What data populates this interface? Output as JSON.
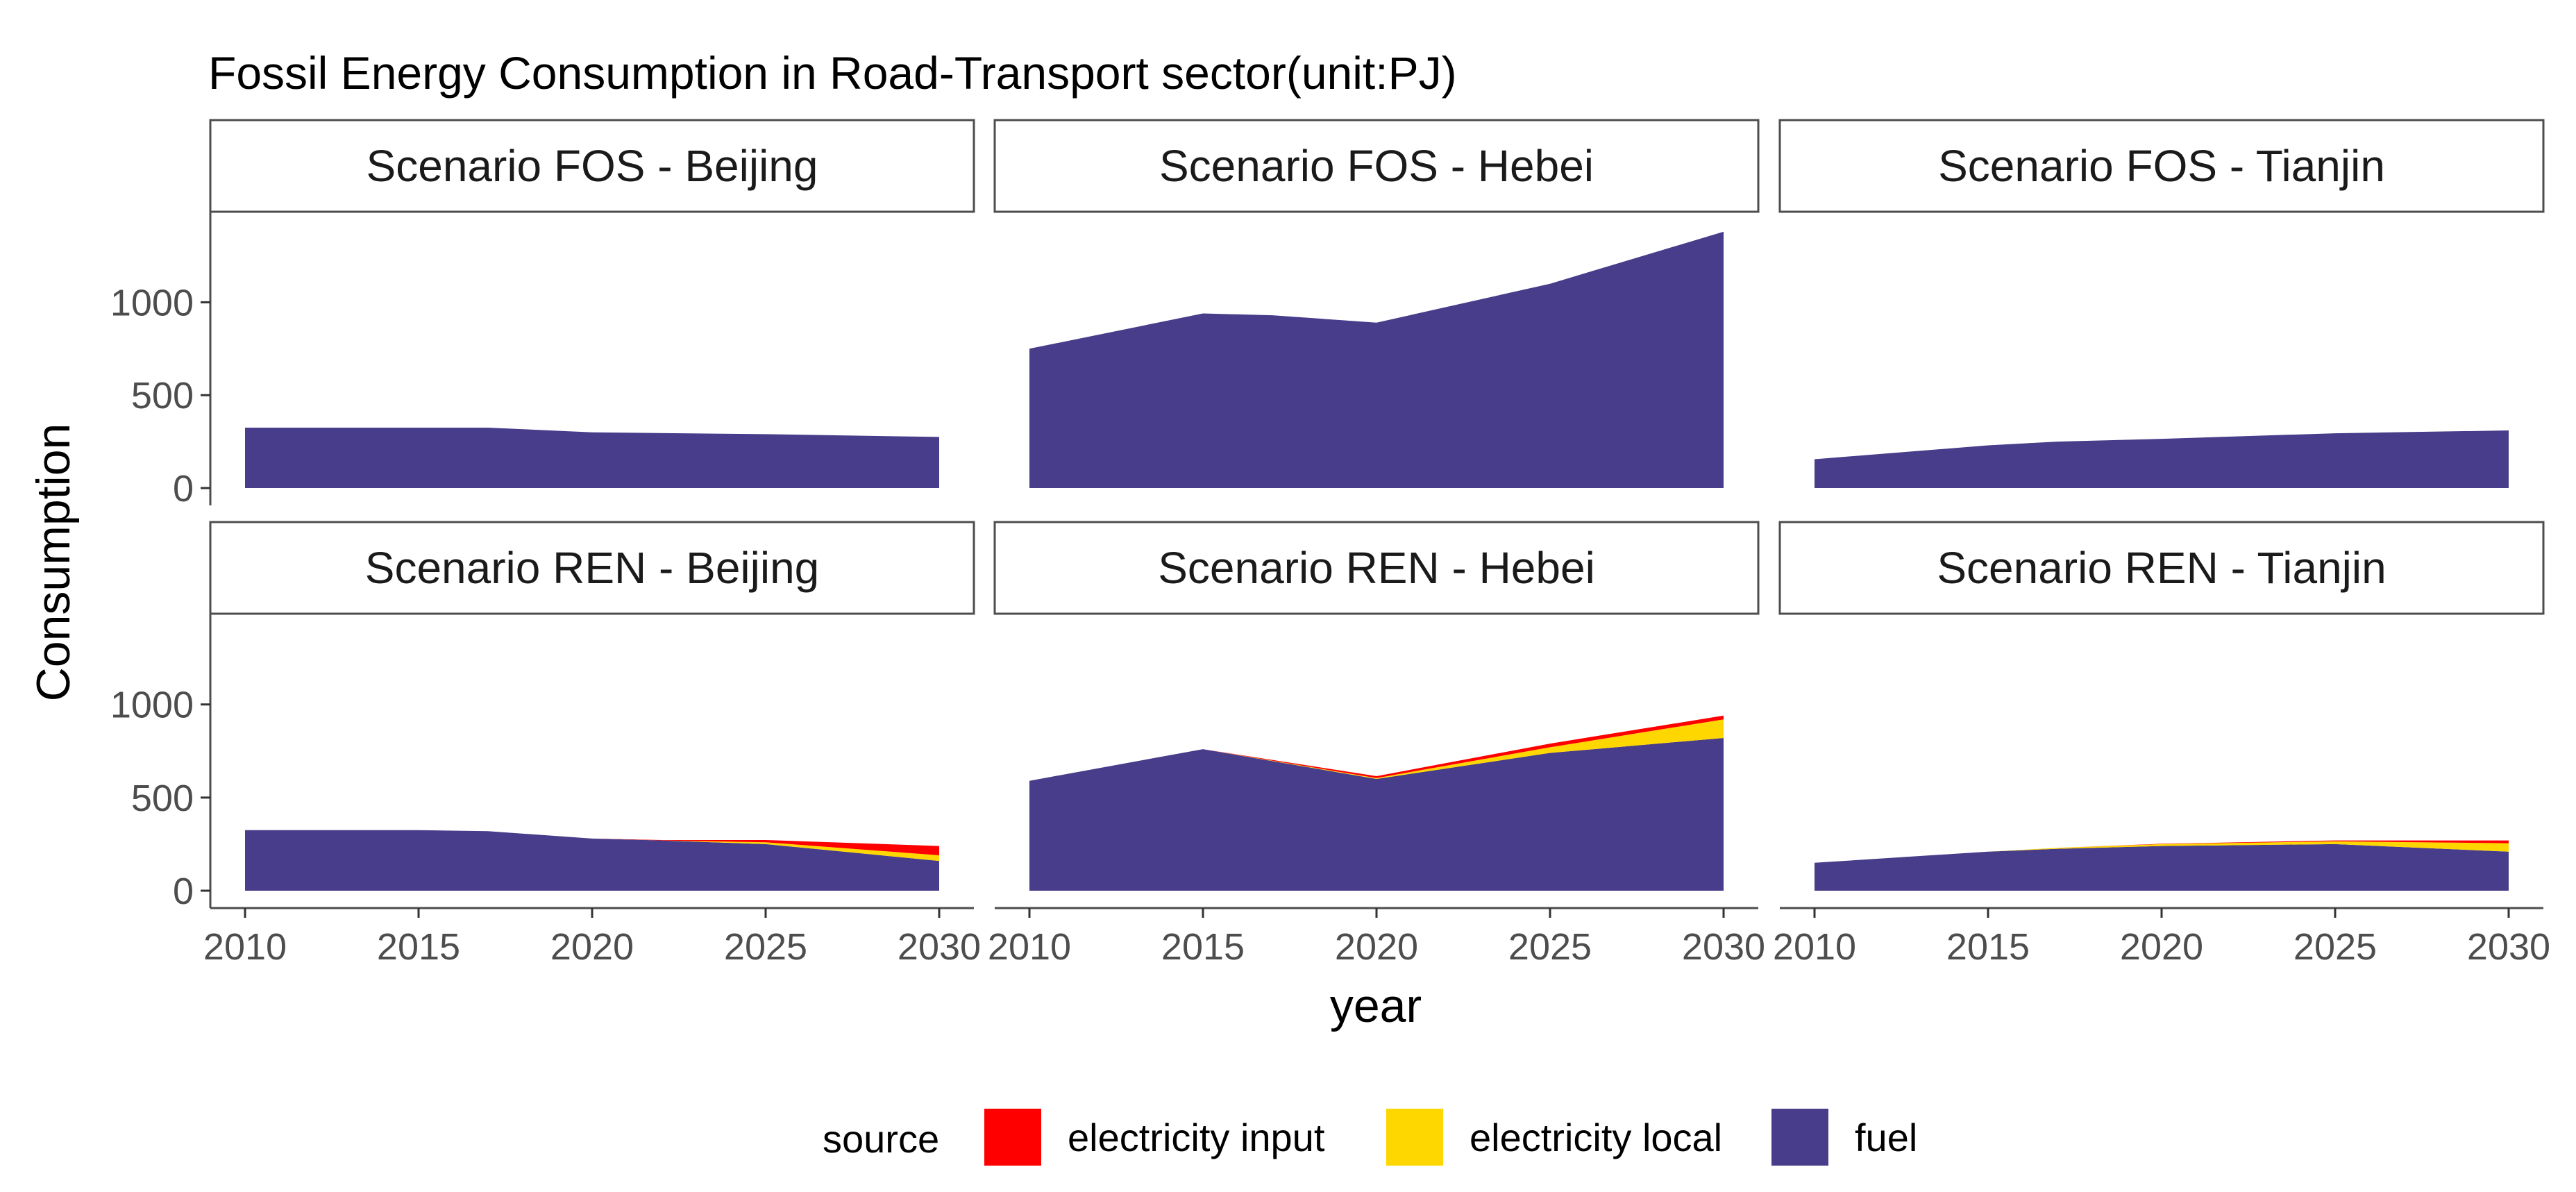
{
  "chart_data": {
    "type": "area",
    "stacked": true,
    "title": "Fossil Energy Consumption in Road-Transport sector(unit:PJ)",
    "xlabel": "year",
    "ylabel": "Consumption",
    "xlim": [
      2010,
      2030
    ],
    "ylim": [
      0,
      1450
    ],
    "x_ticks": [
      2010,
      2015,
      2020,
      2025,
      2030
    ],
    "y_ticks": [
      0,
      500,
      1000
    ],
    "grid": false,
    "legend": {
      "title": "source",
      "position": "bottom",
      "items": [
        {
          "name": "electricity input",
          "color": "#ff0000"
        },
        {
          "name": "electricity local",
          "color": "#ffd700"
        },
        {
          "name": "fuel",
          "color": "#483d8b"
        }
      ]
    },
    "stack_order": [
      "fuel",
      "electricity local",
      "electricity input"
    ],
    "panels": [
      {
        "label": "Scenario FOS - Beijing",
        "x": [
          2010,
          2015,
          2017,
          2020,
          2025,
          2030
        ],
        "series": [
          {
            "name": "fuel",
            "values": [
              325,
              325,
              325,
              300,
              290,
              275
            ]
          },
          {
            "name": "electricity local",
            "values": [
              0,
              0,
              0,
              0,
              0,
              0
            ]
          },
          {
            "name": "electricity input",
            "values": [
              0,
              0,
              0,
              0,
              0,
              0
            ]
          }
        ]
      },
      {
        "label": "Scenario FOS - Hebei",
        "x": [
          2010,
          2015,
          2017,
          2020,
          2025,
          2030
        ],
        "series": [
          {
            "name": "fuel",
            "values": [
              750,
              940,
              930,
              890,
              1100,
              1380
            ]
          },
          {
            "name": "electricity local",
            "values": [
              0,
              0,
              0,
              0,
              0,
              0
            ]
          },
          {
            "name": "electricity input",
            "values": [
              0,
              0,
              0,
              0,
              0,
              0
            ]
          }
        ]
      },
      {
        "label": "Scenario FOS - Tianjin",
        "x": [
          2010,
          2015,
          2017,
          2020,
          2025,
          2030
        ],
        "series": [
          {
            "name": "fuel",
            "values": [
              155,
              230,
              250,
              265,
              295,
              310
            ]
          },
          {
            "name": "electricity local",
            "values": [
              0,
              0,
              0,
              0,
              0,
              0
            ]
          },
          {
            "name": "electricity input",
            "values": [
              0,
              0,
              0,
              0,
              0,
              0
            ]
          }
        ]
      },
      {
        "label": "Scenario REN - Beijing",
        "x": [
          2010,
          2015,
          2017,
          2020,
          2022,
          2025,
          2030
        ],
        "series": [
          {
            "name": "fuel",
            "values": [
              325,
              325,
              320,
              280,
              270,
              250,
              160
            ]
          },
          {
            "name": "electricity local",
            "values": [
              0,
              0,
              0,
              0,
              0,
              10,
              30
            ]
          },
          {
            "name": "electricity input",
            "values": [
              0,
              0,
              0,
              0,
              2,
              12,
              50
            ]
          }
        ]
      },
      {
        "label": "Scenario REN - Hebei",
        "x": [
          2010,
          2015,
          2020,
          2025,
          2030
        ],
        "series": [
          {
            "name": "fuel",
            "values": [
              590,
              760,
              600,
              740,
              820
            ]
          },
          {
            "name": "electricity local",
            "values": [
              0,
              0,
              5,
              30,
              100
            ]
          },
          {
            "name": "electricity input",
            "values": [
              0,
              0,
              10,
              20,
              20
            ]
          }
        ]
      },
      {
        "label": "Scenario REN - Tianjin",
        "x": [
          2010,
          2015,
          2017,
          2020,
          2025,
          2030
        ],
        "series": [
          {
            "name": "fuel",
            "values": [
              150,
              210,
              225,
              240,
              250,
              210
            ]
          },
          {
            "name": "electricity local",
            "values": [
              0,
              0,
              5,
              10,
              15,
              45
            ]
          },
          {
            "name": "electricity input",
            "values": [
              0,
              0,
              0,
              2,
              5,
              15
            ]
          }
        ]
      }
    ]
  }
}
